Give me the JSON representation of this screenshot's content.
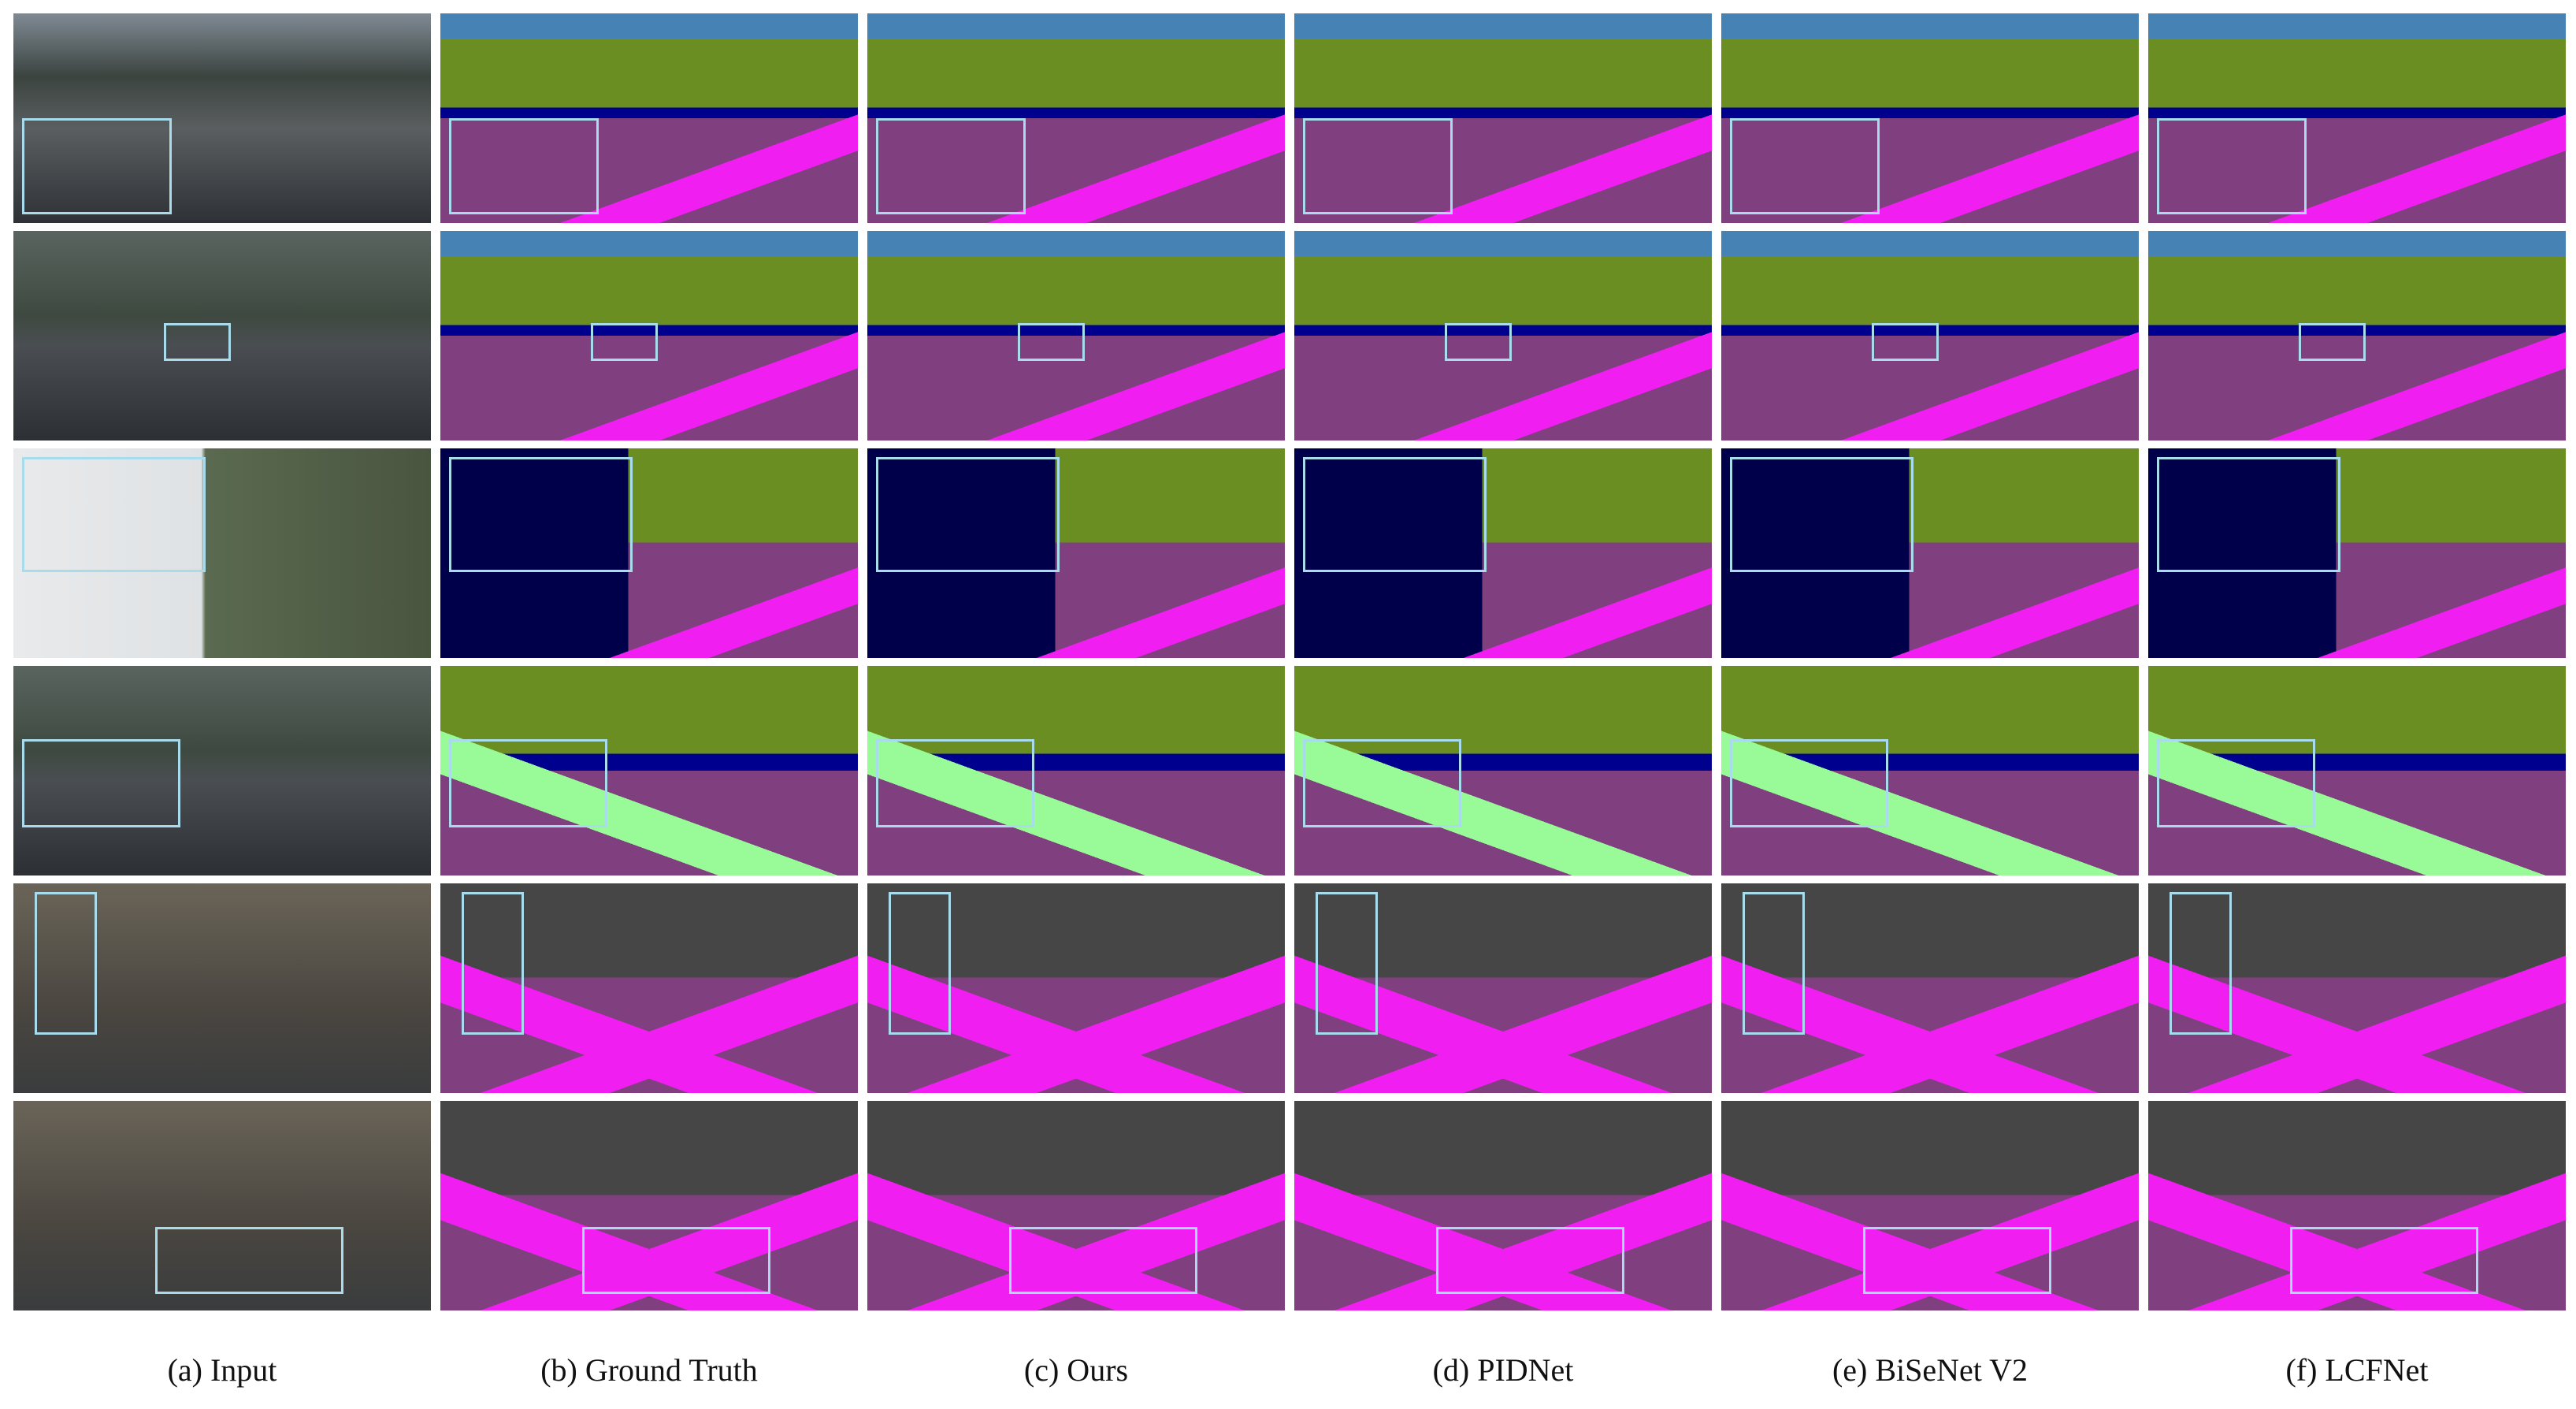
{
  "captions": [
    "(a) Input",
    "(b) Ground Truth",
    "(c) Ours",
    "(d) PIDNet",
    "(e) BiSeNet V2",
    "(f) LCFNet"
  ]
}
